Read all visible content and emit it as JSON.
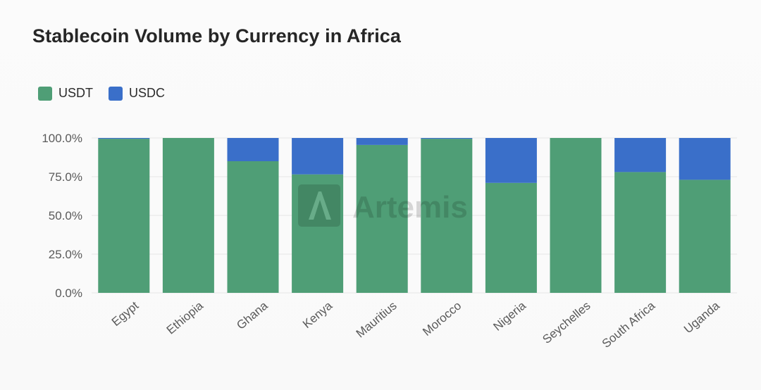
{
  "chart_data": {
    "type": "bar",
    "stacked": true,
    "title": "Stablecoin Volume by Currency in Africa",
    "categories": [
      "Egypt",
      "Ethiopia",
      "Ghana",
      "Kenya",
      "Mauritius",
      "Morocco",
      "Nigeria",
      "Seychelles",
      "South Africa",
      "Uganda"
    ],
    "series": [
      {
        "name": "USDT",
        "color": "#4f9e76",
        "values": [
          99.5,
          100.0,
          85.0,
          76.5,
          95.5,
          99.5,
          71.0,
          100.0,
          78.0,
          73.0
        ]
      },
      {
        "name": "USDC",
        "color": "#3a6fc9",
        "values": [
          0.5,
          0.0,
          15.0,
          23.5,
          4.5,
          0.5,
          29.0,
          0.0,
          22.0,
          27.0
        ]
      }
    ],
    "yticks": [
      "0.0%",
      "25.0%",
      "50.0%",
      "75.0%",
      "100.0%"
    ],
    "ylim": [
      0,
      100
    ],
    "legend_position": "top-left",
    "grid": true
  },
  "watermark": {
    "text": "Artemis",
    "icon": "artemis-logo-icon"
  }
}
